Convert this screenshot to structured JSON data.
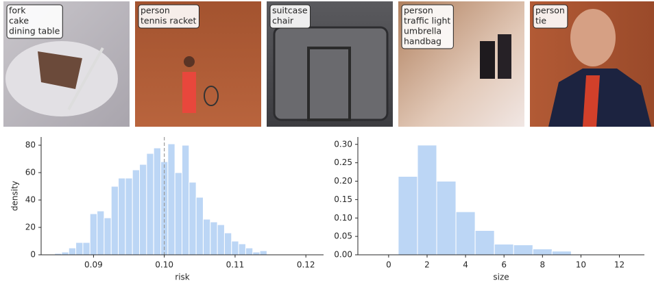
{
  "images": [
    {
      "labels": [
        {
          "text": "fork",
          "color": "#000000"
        },
        {
          "text": "cake",
          "color": "#000000"
        },
        {
          "text": "dining table",
          "color": "#000000"
        }
      ]
    },
    {
      "labels": [
        {
          "text": "person",
          "color": "#000000"
        },
        {
          "text": "tennis racket",
          "color": "#000000"
        }
      ]
    },
    {
      "labels": [
        {
          "text": "suitcase",
          "color": "#000000"
        },
        {
          "text": "chair",
          "color": "#3aa5ad"
        }
      ]
    },
    {
      "labels": [
        {
          "text": "person",
          "color": "#000000"
        },
        {
          "text": "traffic light",
          "color": "#000000"
        },
        {
          "text": "umbrella",
          "color": "#000000"
        },
        {
          "text": "handbag",
          "color": "#000000"
        }
      ]
    },
    {
      "labels": [
        {
          "text": "person",
          "color": "#000000"
        },
        {
          "text": "tie",
          "color": "#000000"
        }
      ]
    }
  ],
  "chart_data": [
    {
      "type": "histogram",
      "xlabel": "risk",
      "ylabel": "density",
      "color": "#bcd6f5",
      "bins": [
        0.0845,
        0.0855,
        0.0865,
        0.0875,
        0.0885,
        0.0895,
        0.0905,
        0.0915,
        0.0925,
        0.0935,
        0.0945,
        0.0955,
        0.0965,
        0.0975,
        0.0985,
        0.0995,
        0.1005,
        0.1015,
        0.1025,
        0.1035,
        0.1045,
        0.1055,
        0.1065,
        0.1075,
        0.1085,
        0.1095,
        0.1105,
        0.1115,
        0.1125,
        0.1135,
        0.1145
      ],
      "values": [
        1,
        2,
        5,
        9,
        9,
        30,
        32,
        27,
        50,
        56,
        56,
        62,
        66,
        74,
        78,
        68,
        81,
        60,
        80,
        53,
        42,
        26,
        24,
        22,
        16,
        10,
        8,
        5,
        2,
        3
      ],
      "vline": 0.1,
      "xlim": [
        0.0826,
        0.1225
      ],
      "xticks": [
        0.09,
        {
          "value": 0.1,
          "label": "0.10"
        },
        0.11,
        0.12
      ],
      "ylim": [
        0,
        86
      ],
      "yticks": [
        0,
        20,
        40,
        60,
        80
      ]
    },
    {
      "type": "histogram",
      "xlabel": "size",
      "color": "#bcd6f5",
      "bins": [
        -0.5,
        0.5,
        1.5,
        2.5,
        3.5,
        4.5,
        5.5,
        6.5,
        7.5,
        8.5,
        9.5,
        10.5
      ],
      "values": [
        0.002,
        0.213,
        0.298,
        0.2,
        0.117,
        0.066,
        0.029,
        0.027,
        0.016,
        0.01,
        0.002
      ],
      "xlim": [
        -1.6,
        13.3
      ],
      "xticks": [
        0,
        2,
        4,
        6,
        8,
        10,
        12
      ],
      "ylim": [
        0,
        0.32
      ],
      "yticks": [
        {
          "value": 0,
          "label": "0.00"
        },
        {
          "value": 0.05,
          "label": "0.05"
        },
        {
          "value": 0.1,
          "label": "0.10"
        },
        {
          "value": 0.15,
          "label": "0.15"
        },
        {
          "value": 0.2,
          "label": "0.20"
        },
        {
          "value": 0.25,
          "label": "0.25"
        },
        {
          "value": 0.3,
          "label": "0.30"
        }
      ]
    }
  ]
}
